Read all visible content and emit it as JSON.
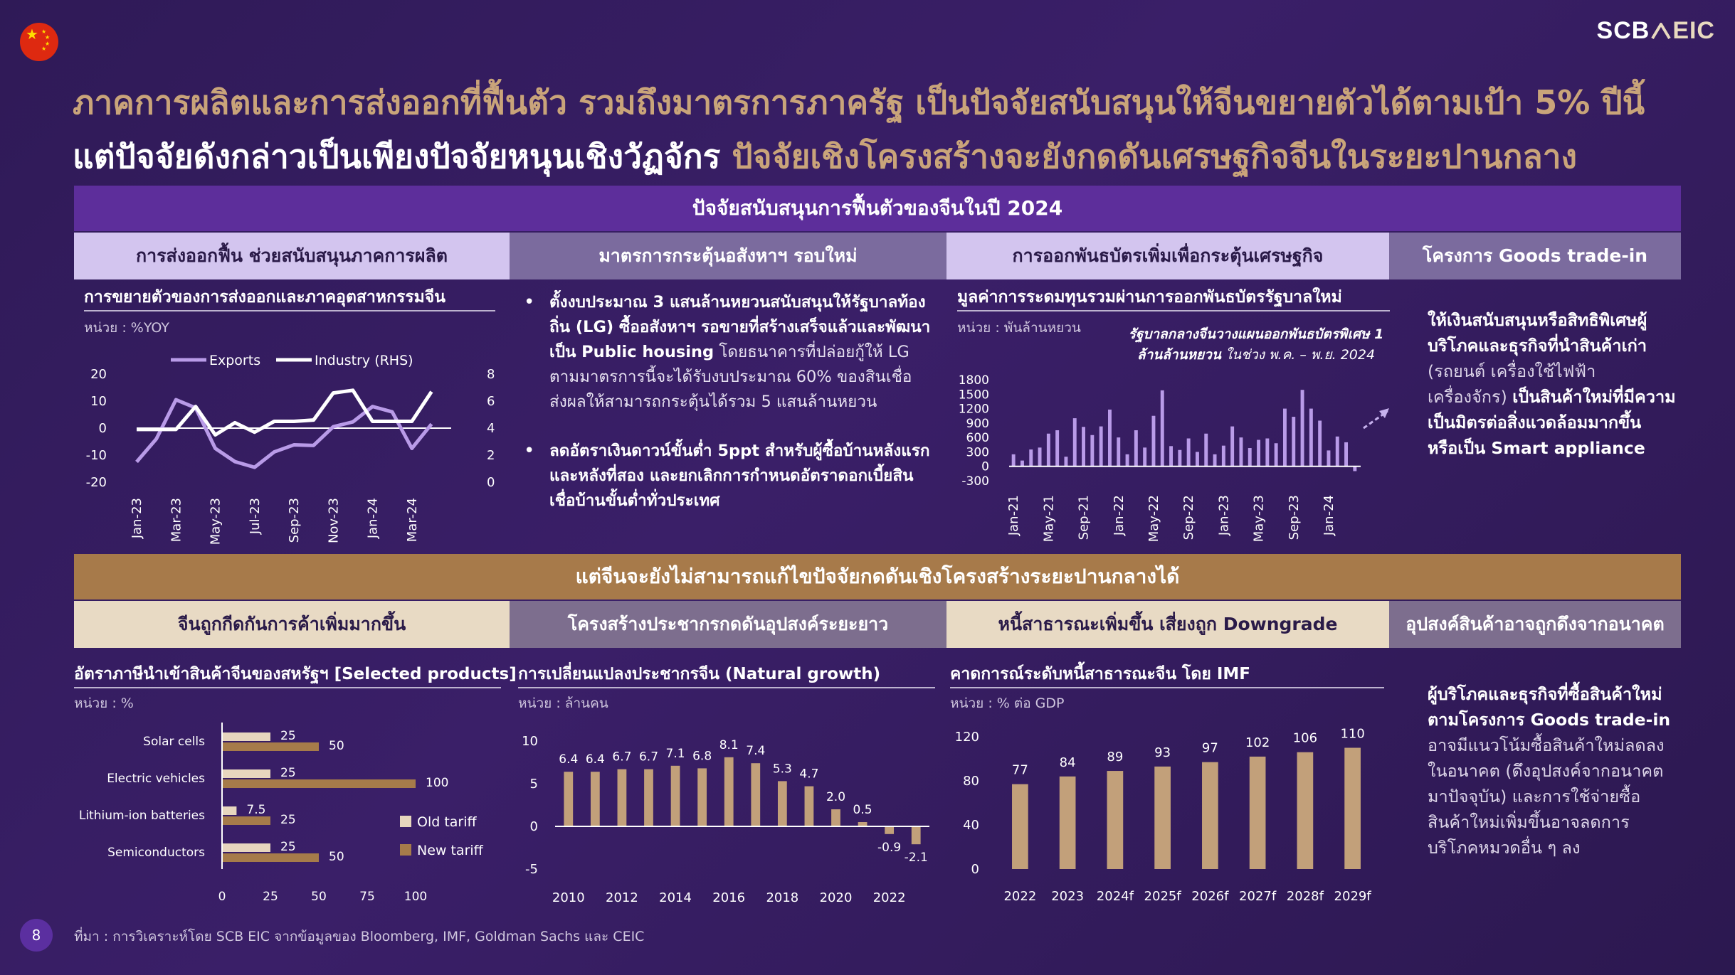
{
  "header": {
    "logo_main": "SCB",
    "logo_icon": "house-roof-icon",
    "logo_sub": "EIC",
    "title_line1": "ภาคการผลิตและการส่งออกที่ฟื้นตัว รวมถึงมาตรการภาครัฐ เป็นปัจจัยสนับสนุนให้จีนขยายตัวได้ตามเป้า 5% ปีนี้",
    "title_line2a": "แต่ปัจจัยดังกล่าวเป็นเพียงปัจจัยหนุนเชิงวัฏจักร",
    "title_line2b": "ปัจจัยเชิงโครงสร้างจะยังกดดันเศรษฐกิจจีนในระยะปานกลาง"
  },
  "colors": {
    "lavender": "#b99be8",
    "white": "#ffffff",
    "bar_beige": "#c2a07a",
    "bar_light": "#e7d6be",
    "bar_brown": "#a67b4a",
    "accent_purple": "#5d2e9b",
    "accent_gold": "#a77a4a"
  },
  "top": {
    "band": "ปัจจัยสนับสนุนการฟื้นตัวของจีนในปี 2024",
    "headers": [
      "การส่งออกฟื้น ช่วยสนับสนุนภาคการผลิต",
      "มาตรการกระตุ้นอสังหาฯ รอบใหม่",
      "การออกพันธบัตรเพิ่มเพื่อกระตุ้นเศรษฐกิจ",
      "โครงการ Goods trade-in"
    ],
    "c1_title": "การขยายตัวของการส่งออกและภาคอุตสาหกรรมจีน",
    "c1_unit": "หน่วย : %YOY",
    "c2_bullet1": "ตั้งงบประมาณ 3 แสนล้านหยวนสนับสนุนให้รัฐบาลท้องถิ่น (LG) ซื้ออสังหาฯ รอขายที่สร้างเสร็จแล้วและพัฒนาเป็น Public housing",
    "c2_bullet1_detail": "โดยธนาคารที่ปล่อยกู้ให้ LG ตามมาตรการนี้จะได้รับงบประมาณ 60% ของสินเชื่อ ส่งผลให้สามารถกระตุ้นได้รวม 5 แสนล้านหยวน",
    "c2_bullet2": "ลดอัตราเงินดาวน์ขั้นต่ำ 5ppt สำหรับผู้ซื้อบ้านหลังแรกและหลังที่สอง และยกเลิกการกำหนดอัตราดอกเบี้ยสินเชื่อบ้านขั้นต่ำทั่วประเทศ",
    "c3_title": "มูลค่าการระดมทุนรวมผ่านการออกพันธบัตรรัฐบาลใหม่",
    "c3_unit": "หน่วย : พันล้านหยวน",
    "c3_annot_bold": "รัฐบาลกลางจีนวางแผนออกพันธบัตรพิเศษ 1 ล้านล้านหยวน",
    "c3_annot_rest": "ในช่วง พ.ค. – พ.ย. 2024",
    "c4_text_bold": "ให้เงินสนับสนุนหรือสิทธิพิเศษผู้บริโภคและธุรกิจที่นำสินค้าเก่า",
    "c4_text_normal": "(รถยนต์ เครื่องใช้ไฟฟ้า เครื่องจักร)",
    "c4_text_bold2": "เป็นสินค้าใหม่ที่มีความเป็นมิตรต่อสิ่งแวดล้อมมากขึ้น หรือเป็น Smart appliance"
  },
  "bottom": {
    "band": "แต่จีนจะยังไม่สามารถแก้ไขปัจจัยกดดันเชิงโครงสร้างระยะปานกลางได้",
    "headers": [
      "จีนถูกกีดกันการค้าเพิ่มมากขึ้น",
      "โครงสร้างประชากรกดดันอุปสงค์ระยะยาว",
      "หนี้สาธารณะเพิ่มขึ้น เสี่ยงถูก Downgrade",
      "อุปสงค์สินค้าอาจถูกดึงจากอนาคต"
    ],
    "c1_title": "อัตราภาษีนำเข้าสินค้าจีนของสหรัฐฯ [Selected products]",
    "c1_unit": "หน่วย : %",
    "c2_title": "การเปลี่ยนแปลงประชากรจีน (Natural growth)",
    "c2_unit": "หน่วย : ล้านคน",
    "c3_title": "คาดการณ์ระดับหนี้สาธารณะจีน โดย IMF",
    "c3_unit": "หน่วย : % ต่อ GDP",
    "c4_text_bold": "ผู้บริโภคและธุรกิจที่ซื้อสินค้าใหม่ตามโครงการ Goods trade-in",
    "c4_text_normal": "อาจมีแนวโน้มซื้อสินค้าใหม่ลดลงในอนาคต (ดึงอุปสงค์จากอนาคตมาปัจจุบัน) และการใช้จ่ายซื้อสินค้าใหม่เพิ่มขึ้นอาจลดการบริโภคหมวดอื่น ๆ ลง"
  },
  "footer": {
    "source": "ที่มา : การวิเคราะห์โดย SCB EIC จากข้อมูลของ Bloomberg, IMF, Goldman Sachs และ CEIC",
    "page": "8"
  },
  "chart_data": [
    {
      "id": "exports-industry",
      "type": "line",
      "legend": [
        "Exports",
        "Industry (RHS)"
      ],
      "x": [
        "Jan-23",
        "Feb-23",
        "Mar-23",
        "Apr-23",
        "May-23",
        "Jun-23",
        "Jul-23",
        "Aug-23",
        "Sep-23",
        "Oct-23",
        "Nov-23",
        "Dec-23",
        "Jan-24",
        "Feb-24",
        "Mar-24",
        "Apr-24",
        "May-24"
      ],
      "x_ticks": [
        "Jan-23",
        "Mar-23",
        "May-23",
        "Jul-23",
        "Sep-23",
        "Nov-23",
        "Jan-24",
        "Mar-24"
      ],
      "series": [
        {
          "name": "Exports",
          "axis": "left",
          "values": [
            -12.5,
            -4,
            10.5,
            7.5,
            -7.5,
            -12.4,
            -14.5,
            -8.8,
            -6.2,
            -6.4,
            0.5,
            2.3,
            8,
            6,
            -7.5,
            1.5,
            null
          ]
        },
        {
          "name": "Industry (RHS)",
          "axis": "right",
          "values": [
            3.9,
            3.9,
            3.9,
            5.6,
            3.5,
            4.4,
            3.7,
            4.5,
            4.5,
            4.6,
            6.6,
            6.8,
            4.5,
            4.5,
            4.5,
            6.7,
            null
          ]
        }
      ],
      "y_left": [
        -20,
        20
      ],
      "y_left_ticks": [
        20,
        10,
        0,
        -10,
        -20
      ],
      "y_right": [
        0,
        8
      ],
      "y_right_ticks": [
        8,
        6,
        4,
        2,
        0
      ],
      "legend_position": "top"
    },
    {
      "id": "bond-issuance",
      "type": "bar",
      "x_ticks": [
        "Jan-21",
        "May-21",
        "Sep-21",
        "Jan-22",
        "May-22",
        "Sep-22",
        "Jan-23",
        "May-23",
        "Sep-23",
        "Jan-24"
      ],
      "values": [
        250,
        120,
        350,
        390,
        680,
        750,
        200,
        1000,
        820,
        650,
        830,
        1180,
        600,
        250,
        750,
        390,
        1050,
        1580,
        420,
        340,
        580,
        300,
        680,
        250,
        430,
        830,
        600,
        380,
        550,
        580,
        480,
        1200,
        1030,
        1590,
        1200,
        950,
        330,
        620,
        500,
        -100
      ],
      "ylim": [
        -300,
        1800
      ],
      "y_ticks": [
        1800,
        1500,
        1200,
        900,
        600,
        300,
        0,
        -300
      ]
    },
    {
      "id": "us-tariffs",
      "type": "bar",
      "orientation": "horizontal",
      "categories": [
        "Solar cells",
        "Electric vehicles",
        "Lithium-ion batteries",
        "Semiconductors"
      ],
      "series": [
        {
          "name": "Old tariff",
          "values": [
            25,
            25,
            7.5,
            25
          ]
        },
        {
          "name": "New tariff",
          "values": [
            50,
            100,
            25,
            50
          ]
        }
      ],
      "value_labels": [
        [
          "25",
          "25",
          "7.5",
          "25"
        ],
        [
          "50",
          "100",
          "25",
          "50"
        ]
      ],
      "xlim": [
        0,
        100
      ],
      "x_ticks": [
        0,
        25,
        50,
        75,
        100
      ],
      "legend_position": "right"
    },
    {
      "id": "population-growth",
      "type": "bar",
      "categories": [
        "2010",
        "2011",
        "2012",
        "2013",
        "2014",
        "2015",
        "2016",
        "2017",
        "2018",
        "2019",
        "2020",
        "2021",
        "2022",
        "2023"
      ],
      "values": [
        6.4,
        6.4,
        6.7,
        6.7,
        7.1,
        6.8,
        8.1,
        7.4,
        5.3,
        4.7,
        2.0,
        0.5,
        -0.9,
        -2.1
      ],
      "labels": [
        "6.4",
        "6.4",
        "6.7",
        "6.7",
        "7.1",
        "6.8",
        "8.1",
        "7.4",
        "5.3",
        "4.7",
        "2.0",
        "0.5",
        "-0.9",
        "-2.1"
      ],
      "x_ticks": [
        "2010",
        "2012",
        "2014",
        "2016",
        "2018",
        "2020",
        "2022"
      ],
      "ylim": [
        -5,
        10
      ],
      "y_ticks": [
        10,
        5,
        0,
        -5
      ]
    },
    {
      "id": "public-debt",
      "type": "bar",
      "categories": [
        "2022",
        "2023",
        "2024f",
        "2025f",
        "2026f",
        "2027f",
        "2028f",
        "2029f"
      ],
      "values": [
        77,
        84,
        89,
        93,
        97,
        102,
        106,
        110
      ],
      "ylim": [
        0,
        120
      ],
      "y_ticks": [
        120,
        80,
        40,
        0
      ]
    }
  ]
}
